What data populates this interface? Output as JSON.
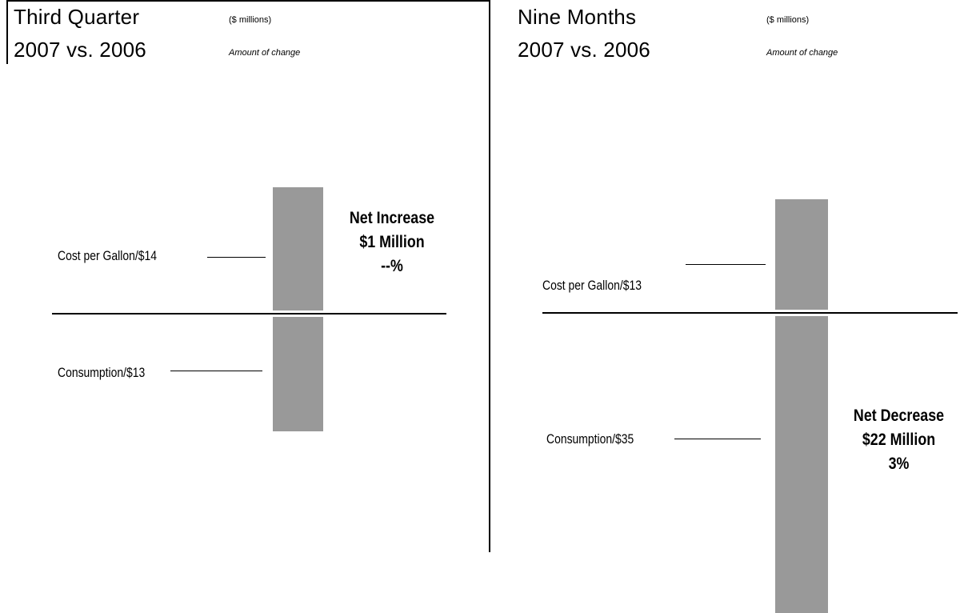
{
  "colors": {
    "bar": "#999999",
    "rule": "#000000",
    "background": "#ffffff"
  },
  "left": {
    "title_line1": "Third Quarter",
    "title_line2": "2007 vs. 2006",
    "units": "($ millions)",
    "change_note": "Amount of change",
    "cost_label": "Cost per Gallon/$14",
    "consumption_label": "Consumption/$13",
    "net_line1": "Net Increase",
    "net_line2": "$1 Million",
    "net_line3": "--%"
  },
  "right": {
    "title_line1": "Nine Months",
    "title_line2": "2007 vs. 2006",
    "units": "($ millions)",
    "change_note": "Amount of change",
    "cost_label": "Cost per Gallon/$13",
    "consumption_label": "Consumption/$35",
    "net_line1": "Net Decrease",
    "net_line2": "$22 Million",
    "net_line3": "3%"
  },
  "chart_data": [
    {
      "type": "bar",
      "title": "Third Quarter 2007 vs. 2006",
      "categories": [
        "Cost per Gallon",
        "Consumption"
      ],
      "values": [
        14,
        -13
      ],
      "net": 1
    },
    {
      "type": "bar",
      "title": "Nine Months 2007 vs. 2006",
      "categories": [
        "Cost per Gallon",
        "Consumption"
      ],
      "values": [
        13,
        -35
      ],
      "net": -22
    }
  ]
}
